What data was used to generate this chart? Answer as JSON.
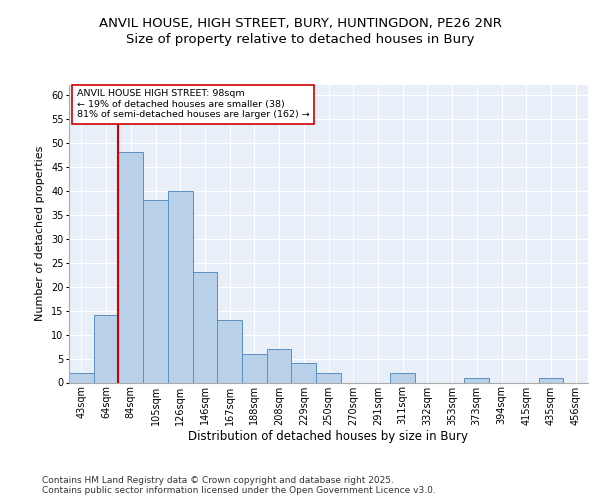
{
  "title1": "ANVIL HOUSE, HIGH STREET, BURY, HUNTINGDON, PE26 2NR",
  "title2": "Size of property relative to detached houses in Bury",
  "xlabel": "Distribution of detached houses by size in Bury",
  "ylabel": "Number of detached properties",
  "bar_labels": [
    "43sqm",
    "64sqm",
    "84sqm",
    "105sqm",
    "126sqm",
    "146sqm",
    "167sqm",
    "188sqm",
    "208sqm",
    "229sqm",
    "250sqm",
    "270sqm",
    "291sqm",
    "311sqm",
    "332sqm",
    "353sqm",
    "373sqm",
    "394sqm",
    "415sqm",
    "435sqm",
    "456sqm"
  ],
  "bar_values": [
    2,
    14,
    48,
    38,
    40,
    23,
    13,
    6,
    7,
    4,
    2,
    0,
    0,
    2,
    0,
    0,
    1,
    0,
    0,
    1,
    0
  ],
  "bar_color": "#b8d0e8",
  "bar_edge_color": "#5a8fc0",
  "bg_color": "#e8eff8",
  "grid_color": "#ffffff",
  "vline_color": "#cc0000",
  "annotation_text": "ANVIL HOUSE HIGH STREET: 98sqm\n← 19% of detached houses are smaller (38)\n81% of semi-detached houses are larger (162) →",
  "annotation_box_color": "#ffffff",
  "annotation_border_color": "#cc0000",
  "ylim": [
    0,
    62
  ],
  "yticks": [
    0,
    5,
    10,
    15,
    20,
    25,
    30,
    35,
    40,
    45,
    50,
    55,
    60
  ],
  "footer": "Contains HM Land Registry data © Crown copyright and database right 2025.\nContains public sector information licensed under the Open Government Licence v3.0.",
  "title_fontsize": 9.5,
  "subtitle_fontsize": 9.5,
  "tick_fontsize": 7,
  "ylabel_fontsize": 8,
  "xlabel_fontsize": 8.5,
  "footer_fontsize": 6.5,
  "annotation_fontsize": 6.8
}
